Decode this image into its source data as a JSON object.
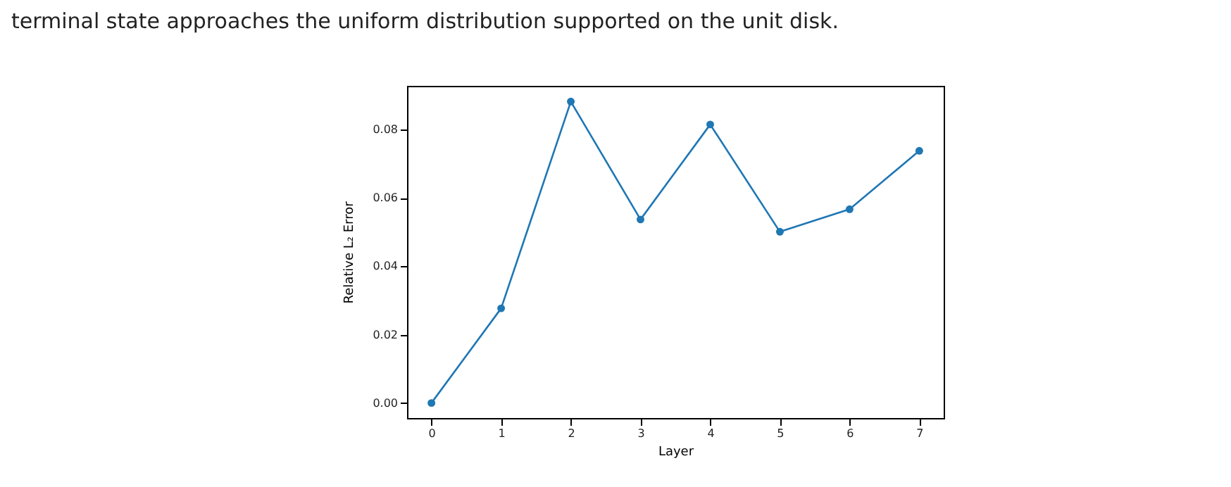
{
  "chart_data": {
    "type": "line",
    "xlabel": "Layer",
    "ylabel": "Relative L₂ Error",
    "annotations": [
      "terminal state approaches the uniform distribution supported on the unit disk."
    ],
    "x": [
      0,
      1,
      2,
      3,
      4,
      5,
      6,
      7
    ],
    "series": [
      {
        "color": "#1f77b4",
        "values": [
          0.0,
          0.0277,
          0.0882,
          0.0537,
          0.0815,
          0.0501,
          0.0567,
          0.0738
        ]
      }
    ],
    "xlim": [
      -0.35,
      7.35
    ],
    "xticks": [
      0,
      1,
      2,
      3,
      4,
      5,
      6,
      7
    ],
    "ylim": [
      -0.0044,
      0.0928
    ],
    "yticks": [
      {
        "value": 0,
        "label": "0.00"
      },
      {
        "value": 0.02,
        "label": "0.02"
      },
      {
        "value": 0.04,
        "label": "0.04"
      },
      {
        "value": 0.06,
        "label": "0.06"
      },
      {
        "value": 0.08,
        "label": "0.08"
      }
    ],
    "grid": false,
    "marker": "circle",
    "line_style": "solid"
  }
}
